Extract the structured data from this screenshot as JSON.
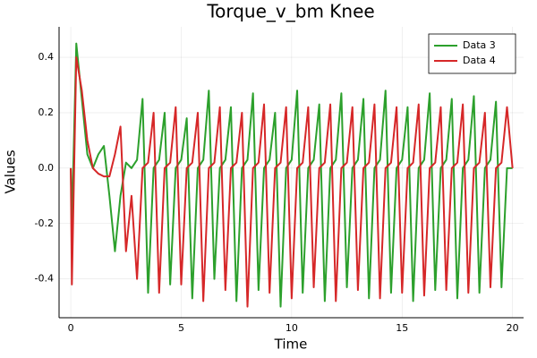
{
  "chart_data": {
    "type": "line",
    "title": "Torque_v_bm Knee",
    "x_label": "Time",
    "y_label": "Values",
    "x": [
      0,
      0.05,
      0.25,
      0.5,
      0.75,
      1,
      1.25,
      1.5,
      1.75,
      2,
      2.25,
      2.5,
      2.75,
      3,
      3.25,
      3.5,
      3.75,
      4,
      4.25,
      4.5,
      4.75,
      5,
      5.25,
      5.5,
      5.75,
      6,
      6.25,
      6.5,
      6.75,
      7,
      7.25,
      7.5,
      7.75,
      8,
      8.25,
      8.5,
      8.75,
      9,
      9.25,
      9.5,
      9.75,
      10,
      10.25,
      10.5,
      10.75,
      11,
      11.25,
      11.5,
      11.75,
      12,
      12.25,
      12.5,
      12.75,
      13,
      13.25,
      13.5,
      13.75,
      14,
      14.25,
      14.5,
      14.75,
      15,
      15.25,
      15.5,
      15.75,
      16,
      16.25,
      16.5,
      16.75,
      17,
      17.25,
      17.5,
      17.75,
      18,
      18.25,
      18.5,
      18.75,
      19,
      19.25,
      19.5,
      19.75,
      20
    ],
    "series": [
      {
        "name": "Data 3",
        "color": "#2ca02c",
        "values": [
          0,
          -0.2,
          0.45,
          0.25,
          0.05,
          0,
          0.05,
          0.08,
          -0.1,
          -0.3,
          -0.1,
          0.02,
          0,
          0.03,
          0.25,
          -0.45,
          0,
          0.03,
          0.2,
          -0.42,
          0,
          0.03,
          0.18,
          -0.47,
          0,
          0.03,
          0.28,
          -0.4,
          0,
          0.03,
          0.22,
          -0.48,
          0,
          0.03,
          0.27,
          -0.44,
          0,
          0.03,
          0.2,
          -0.5,
          0,
          0.03,
          0.28,
          -0.45,
          0,
          0.03,
          0.23,
          -0.48,
          0,
          0.03,
          0.27,
          -0.43,
          0,
          0.03,
          0.25,
          -0.47,
          0,
          0.03,
          0.28,
          -0.45,
          0,
          0.03,
          0.22,
          -0.48,
          0,
          0.03,
          0.27,
          -0.44,
          0,
          0.03,
          0.25,
          -0.47,
          0,
          0.03,
          0.26,
          -0.45,
          0,
          0.03,
          0.24,
          -0.43,
          0,
          0
        ]
      },
      {
        "name": "Data 4",
        "color": "#d62728",
        "values": [
          0,
          -0.42,
          0.4,
          0.28,
          0.1,
          0,
          -0.02,
          -0.03,
          -0.03,
          0.05,
          0.15,
          -0.3,
          -0.1,
          -0.4,
          0,
          0.02,
          0.2,
          -0.45,
          0,
          0.02,
          0.22,
          -0.42,
          0,
          0.02,
          0.2,
          -0.48,
          0,
          0.02,
          0.22,
          -0.44,
          0,
          0.02,
          0.2,
          -0.5,
          0,
          0.02,
          0.23,
          -0.45,
          0,
          0.02,
          0.22,
          -0.47,
          0,
          0.02,
          0.22,
          -0.43,
          0,
          0.02,
          0.23,
          -0.48,
          0,
          0.02,
          0.22,
          -0.44,
          0,
          0.02,
          0.23,
          -0.47,
          0,
          0.02,
          0.22,
          -0.45,
          0,
          0.02,
          0.23,
          -0.46,
          0,
          0.02,
          0.22,
          -0.44,
          0,
          0.02,
          0.23,
          -0.45,
          0,
          0.02,
          0.2,
          -0.43,
          0,
          0.02,
          0.22,
          0
        ]
      }
    ],
    "xlim": [
      -0.53,
      20.5
    ],
    "xticks": [
      0,
      5,
      10,
      15,
      20
    ],
    "ylim": [
      -0.54,
      0.51
    ],
    "yticks": [
      -0.4,
      -0.2,
      {
        "value": 0,
        "label": "0.0"
      },
      0.2,
      0.4
    ],
    "grid": true,
    "legend": "top-right"
  }
}
